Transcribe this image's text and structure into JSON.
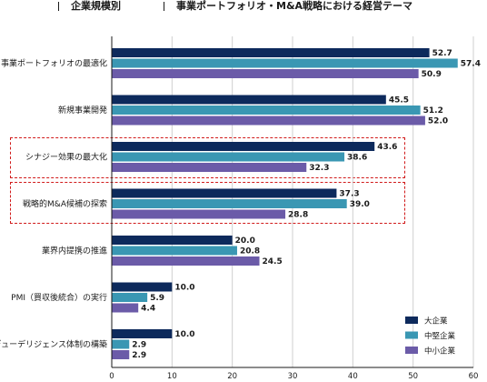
{
  "header": {
    "segment": "企業規模別",
    "theme": "事業ポートフォリオ・M&A戦略における経営テーマ"
  },
  "colors": {
    "large": "#0d2a5c",
    "medium": "#3a97b3",
    "small": "#6b5ba8",
    "highlight": "#d11a1a",
    "grid": "#cfcfcf"
  },
  "chart_data": {
    "type": "bar",
    "orientation": "horizontal",
    "categories": [
      "事業ポートフォリオの最適化",
      "新規事業開発",
      "シナジー効果の最大化",
      "戦略的M&A候補の探索",
      "業界内提携の推進",
      "PMI（買収後統合）の実行",
      "デューデリジェンス体制の構築"
    ],
    "series": [
      {
        "name": "大企業",
        "values": [
          52.7,
          45.5,
          43.6,
          37.3,
          20.0,
          10.0,
          10.0
        ]
      },
      {
        "name": "中堅企業",
        "values": [
          57.4,
          51.2,
          38.6,
          39.0,
          20.8,
          5.9,
          2.9
        ]
      },
      {
        "name": "中小企業",
        "values": [
          50.9,
          52.0,
          32.3,
          28.8,
          24.5,
          4.4,
          2.9
        ]
      }
    ],
    "value_labels": [
      [
        "52.7",
        "57.4",
        "50.9"
      ],
      [
        "45.5",
        "51.2",
        "52.0"
      ],
      [
        "43.6",
        "38.6",
        "32.3"
      ],
      [
        "37.3",
        "39.0",
        "28.8"
      ],
      [
        "20.0",
        "20.8",
        "24.5"
      ],
      [
        "10.0",
        "5.9",
        "4.4"
      ],
      [
        "10.0",
        "2.9",
        "2.9"
      ]
    ],
    "highlighted_categories": [
      "シナジー効果の最大化",
      "戦略的M&A候補の探索"
    ],
    "xlim": [
      0,
      60
    ],
    "xticks": [
      "0",
      "10",
      "20",
      "30",
      "40",
      "50",
      "60"
    ],
    "grid": true,
    "legend_position": "bottom-right"
  }
}
